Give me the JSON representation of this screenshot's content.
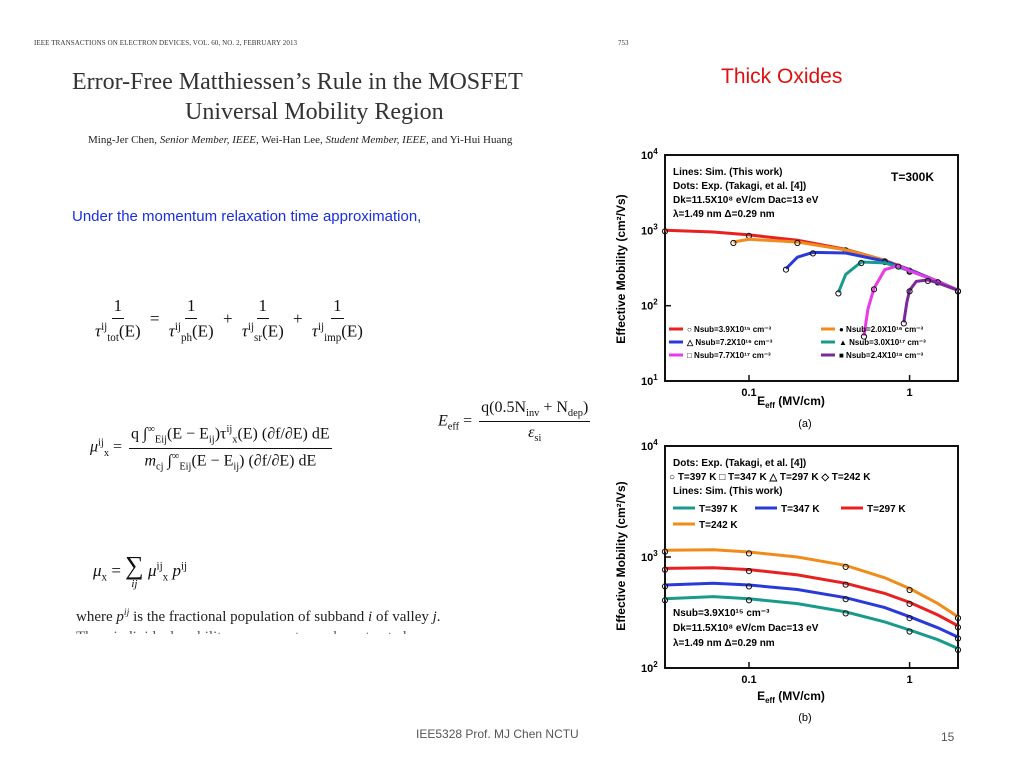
{
  "paper": {
    "journal_header": "IEEE TRANSACTIONS ON ELECTRON DEVICES, VOL. 60, NO. 2, FEBRUARY 2013",
    "page_number": "753",
    "title_line1": "Error-Free Matthiessen’s Rule in the MOSFET",
    "title_line2": "Universal Mobility Region",
    "authors": [
      {
        "text": "Ming-Jer Chen, ",
        "italic": false
      },
      {
        "text": "Senior Member, IEEE",
        "italic": true
      },
      {
        "text": ", Wei-Han Lee, ",
        "italic": false
      },
      {
        "text": "Student Member, IEEE",
        "italic": true
      },
      {
        "text": ", and Yi-Hui Huang",
        "italic": false
      }
    ]
  },
  "slide": {
    "heading": "Thick Oxides",
    "heading_color": "#e01010",
    "note": "Under the momentum relaxation time approximation,",
    "note_color": "#1a2ee0",
    "where_text_parts": {
      "a": "where ",
      "p": "p",
      "ij": "ij",
      "b": " is the fractional population of subband ",
      "i": "i",
      "c": " of valley ",
      "j": "j",
      "d": "."
    },
    "cut_text": "Thus, individual mobility components can be extracted",
    "footer": "IEE5328 Prof. MJ Chen NCTU",
    "slide_number": "15"
  },
  "equations": {
    "one": "1",
    "tau_tot": "τ",
    "sub_tot": "tot",
    "sub_ph": "ph",
    "sub_sr": "sr",
    "sub_imp": "imp",
    "ij": "ij",
    "arg_E": "(E)",
    "eq": "=",
    "plus": "+",
    "eeff_lhs": "E",
    "eeff_sub": "eff",
    "eeff_num": "q(0.5N",
    "eeff_num_sub1": "inv",
    "eeff_num_mid": " + N",
    "eeff_num_sub2": "dep",
    "eeff_num_end": ")",
    "eeff_den": "ε",
    "eeff_den_sub": "si",
    "mu": "μ",
    "sub_x": "x",
    "mu_num": "q ∫",
    "mu_num_lim": "∞",
    "mu_num_low": "E",
    "mu_num_body": "(E − E",
    "mu_num_body2": ")τ",
    "mu_num_body3": "(E) (∂f/∂E) dE",
    "mu_den": "m",
    "mu_den_sub": "cj",
    "mu_den_body": " ∫",
    "mu_den_body2": "(E − E",
    "mu_den_body3": ") (∂f/∂E) dE",
    "sum": "∑",
    "sum_sub": "ij",
    "p": "p"
  },
  "figures": [
    {
      "panel_label": "(a)",
      "ylabel": "Effective Mobility (cm²/Vs)",
      "xlabel": "E",
      "xlabel_sub": "eff",
      "xlabel_unit": " (MV/cm)",
      "yticks": [
        "10",
        "10",
        "10",
        "10"
      ],
      "ytick_exps": [
        "4",
        "3",
        "2",
        "1"
      ],
      "xticks": [
        "0.1",
        "1"
      ],
      "legend_top": [
        "Lines: Sim. (This work)",
        "Dots: Exp. (Takagi, et al. [4])",
        "Dk=11.5X10⁸ eV/cm  Dac=13 eV",
        "λ=1.49 nm  Δ=0.29 nm"
      ],
      "temperature": "T=300K",
      "legend_bottom": [
        "○ Nsub=3.9X10¹⁵ cm⁻³",
        "● Nsub=2.0X10¹⁶ cm⁻³",
        "△ Nsub=7.2X10¹⁶ cm⁻³",
        "▲ Nsub=3.0X10¹⁷ cm⁻³",
        "□ Nsub=7.7X10¹⁷ cm⁻³",
        "■ Nsub=2.4X10¹⁸ cm⁻³"
      ],
      "series_colors": [
        "#e82020",
        "#f08c1a",
        "#2a3ad8",
        "#1a9a8c",
        "#e83ae8",
        "#7a2a9a"
      ]
    },
    {
      "panel_label": "(b)",
      "ylabel": "Effective Mobility (cm²/Vs)",
      "xlabel": "E",
      "xlabel_sub": "eff",
      "xlabel_unit": " (MV/cm)",
      "yticks": [
        "10",
        "10",
        "10"
      ],
      "ytick_exps": [
        "4",
        "3",
        "2"
      ],
      "xticks": [
        "0.1",
        "1"
      ],
      "legend_top": [
        "Dots: Exp. (Takagi, et al. [4])",
        "○ T=397 K □ T=347 K △ T=297 K ◇ T=242 K",
        "Lines: Sim. (This work)"
      ],
      "line_legend": [
        "T=397 K",
        "T=347 K",
        "T=297 K",
        "T=242 K"
      ],
      "legend_bottom": [
        "Nsub=3.9X10¹⁵ cm⁻³",
        "Dk=11.5X10⁸ eV/cm  Dac=13 eV",
        "λ=1.49 nm  Δ=0.29 nm"
      ],
      "series_colors": [
        "#1a9a8c",
        "#2a3ad8",
        "#e82020",
        "#f08c1a"
      ]
    }
  ],
  "chart_data": [
    {
      "type": "line",
      "title": "",
      "xlabel": "Eeff (MV/cm)",
      "ylabel": "Effective Mobility (cm²/Vs)",
      "xscale": "log",
      "yscale": "log",
      "xlim": [
        0.03,
        2.0
      ],
      "ylim": [
        10,
        10000
      ],
      "series": [
        {
          "name": "Nsub=3.9X10¹⁵ cm⁻³",
          "x": [
            0.03,
            0.06,
            0.1,
            0.2,
            0.4,
            0.7,
            1.0,
            1.5,
            2.0
          ],
          "y": [
            1000,
            950,
            870,
            740,
            560,
            400,
            300,
            210,
            160
          ]
        },
        {
          "name": "Nsub=2.0X10¹⁶ cm⁻³",
          "x": [
            0.08,
            0.1,
            0.2,
            0.4,
            0.7,
            1.0,
            1.5,
            2.0
          ],
          "y": [
            700,
            760,
            700,
            550,
            400,
            300,
            210,
            160
          ]
        },
        {
          "name": "Nsub=7.2X10¹⁶ cm⁻³",
          "x": [
            0.17,
            0.2,
            0.25,
            0.4,
            0.7,
            1.0,
            1.5,
            2.0
          ],
          "y": [
            310,
            440,
            510,
            500,
            390,
            300,
            210,
            160
          ]
        },
        {
          "name": "Nsub=3.0X10¹⁷ cm⁻³",
          "x": [
            0.36,
            0.4,
            0.5,
            0.7,
            1.0,
            1.5,
            2.0
          ],
          "y": [
            150,
            260,
            380,
            370,
            290,
            210,
            160
          ]
        },
        {
          "name": "Nsub=7.7X10¹⁷ cm⁻³",
          "x": [
            0.52,
            0.55,
            0.6,
            0.7,
            0.85,
            1.0,
            1.5,
            2.0
          ],
          "y": [
            40,
            90,
            170,
            300,
            340,
            290,
            210,
            160
          ]
        },
        {
          "name": "Nsub=2.4X10¹⁸ cm⁻³",
          "x": [
            0.92,
            0.96,
            1.0,
            1.1,
            1.3,
            1.5,
            2.0
          ],
          "y": [
            60,
            110,
            160,
            210,
            220,
            200,
            160
          ]
        }
      ]
    },
    {
      "type": "line",
      "title": "",
      "xlabel": "Eeff (MV/cm)",
      "ylabel": "Effective Mobility (cm²/Vs)",
      "xscale": "log",
      "yscale": "log",
      "xlim": [
        0.03,
        2.0
      ],
      "ylim": [
        100,
        10000
      ],
      "series": [
        {
          "name": "T=397 K",
          "x": [
            0.03,
            0.06,
            0.1,
            0.2,
            0.4,
            0.7,
            1.0,
            1.5,
            2.0
          ],
          "y": [
            420,
            440,
            420,
            380,
            320,
            260,
            220,
            180,
            150
          ]
        },
        {
          "name": "T=347 K",
          "x": [
            0.03,
            0.06,
            0.1,
            0.2,
            0.4,
            0.7,
            1.0,
            1.5,
            2.0
          ],
          "y": [
            560,
            580,
            560,
            510,
            430,
            350,
            290,
            230,
            190
          ]
        },
        {
          "name": "T=297 K",
          "x": [
            0.03,
            0.06,
            0.1,
            0.2,
            0.4,
            0.7,
            1.0,
            1.5,
            2.0
          ],
          "y": [
            790,
            800,
            770,
            690,
            580,
            470,
            390,
            300,
            240
          ]
        },
        {
          "name": "T=242 K",
          "x": [
            0.03,
            0.06,
            0.1,
            0.2,
            0.4,
            0.7,
            1.0,
            1.5,
            2.0
          ],
          "y": [
            1150,
            1160,
            1110,
            1000,
            840,
            650,
            520,
            380,
            290
          ]
        }
      ]
    }
  ]
}
